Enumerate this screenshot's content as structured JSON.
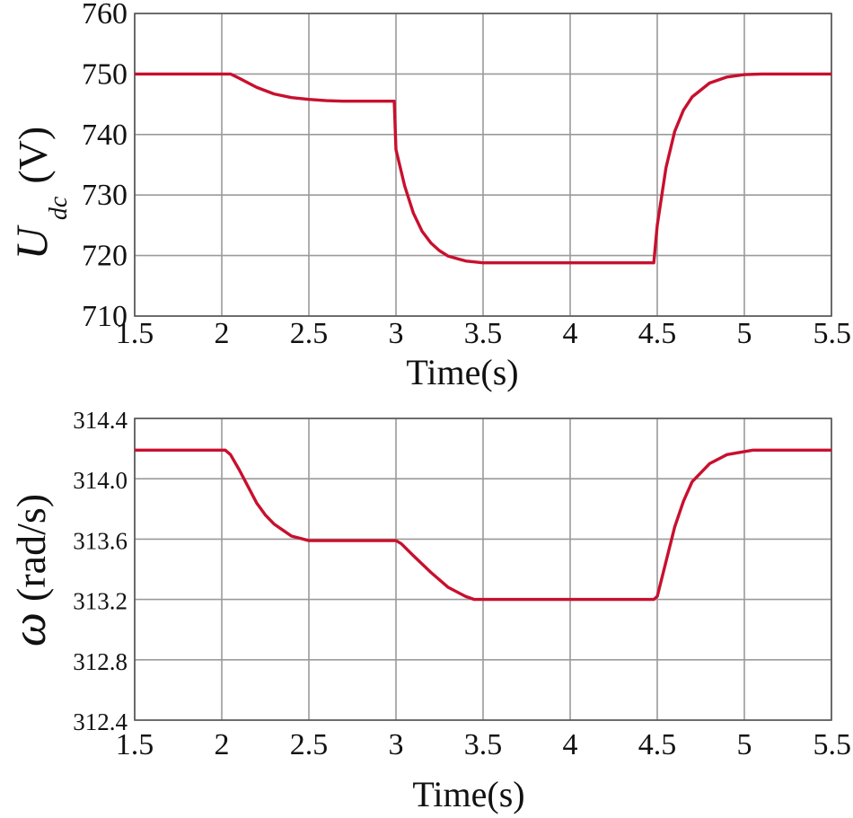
{
  "chart_data": [
    {
      "type": "line",
      "xlabel": "Time(s)",
      "ylabel_main": "U",
      "ylabel_sub": "dc",
      "ylabel_unit": "(V)",
      "xlim": [
        1.5,
        5.5
      ],
      "ylim": [
        710,
        760
      ],
      "xticks": [
        "1.5",
        "2",
        "2.5",
        "3",
        "3.5",
        "4",
        "4.5",
        "5",
        "5.5"
      ],
      "yticks": [
        "710",
        "720",
        "730",
        "740",
        "750",
        "760"
      ],
      "grid": true,
      "color": "#c8102e",
      "series": [
        {
          "x": [
            1.5,
            2.0,
            2.05,
            2.1,
            2.2,
            2.3,
            2.4,
            2.5,
            2.6,
            2.7,
            2.98,
            2.99,
            3.0,
            3.05,
            3.1,
            3.15,
            3.2,
            3.25,
            3.3,
            3.4,
            3.5,
            3.6,
            4.0,
            4.48,
            4.5,
            4.55,
            4.6,
            4.65,
            4.7,
            4.8,
            4.9,
            5.0,
            5.1,
            5.5
          ],
          "y": [
            750,
            750,
            750,
            749.3,
            747.8,
            746.7,
            746.1,
            745.8,
            745.6,
            745.5,
            745.5,
            745.5,
            737.5,
            731.5,
            727,
            724,
            722.1,
            720.8,
            719.9,
            719.1,
            718.8,
            718.8,
            718.8,
            718.8,
            725,
            734.5,
            740.5,
            744,
            746.2,
            748.5,
            749.5,
            749.9,
            750,
            750
          ]
        }
      ]
    },
    {
      "type": "line",
      "xlabel": "Time(s)",
      "ylabel_main": "ω",
      "ylabel_unit": "(rad/s)",
      "xlim": [
        1.5,
        5.5
      ],
      "ylim": [
        312.4,
        314.4
      ],
      "xticks": [
        "1.5",
        "2",
        "2.5",
        "3",
        "3.5",
        "4",
        "4.5",
        "5",
        "5.5"
      ],
      "yticks": [
        "312.4",
        "312.8",
        "313.2",
        "313.6",
        "314.0",
        "314.4"
      ],
      "grid": true,
      "color": "#c8102e",
      "series": [
        {
          "x": [
            1.5,
            2.0,
            2.02,
            2.05,
            2.1,
            2.15,
            2.2,
            2.25,
            2.3,
            2.35,
            2.4,
            2.5,
            2.6,
            3.0,
            3.03,
            3.1,
            3.2,
            3.3,
            3.4,
            3.45,
            3.5,
            4.0,
            4.48,
            4.5,
            4.55,
            4.6,
            4.65,
            4.7,
            4.8,
            4.9,
            5.0,
            5.05,
            5.5
          ],
          "y": [
            314.19,
            314.19,
            314.19,
            314.16,
            314.06,
            313.95,
            313.84,
            313.76,
            313.7,
            313.66,
            313.62,
            313.59,
            313.59,
            313.59,
            313.57,
            313.49,
            313.38,
            313.28,
            313.22,
            313.2,
            313.2,
            313.2,
            313.2,
            313.22,
            313.45,
            313.68,
            313.85,
            313.98,
            314.1,
            314.16,
            314.18,
            314.19,
            314.19
          ]
        }
      ]
    }
  ]
}
